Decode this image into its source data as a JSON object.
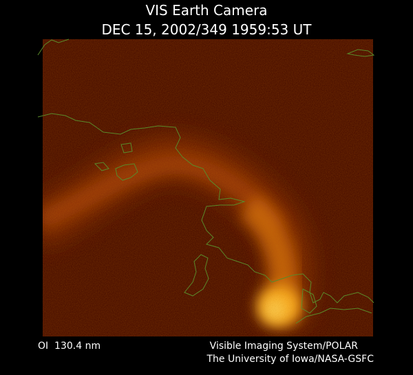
{
  "header": {
    "title": "VIS Earth Camera",
    "subtitle": "DEC 15, 2002/349 1959:53 UT"
  },
  "footer": {
    "left": "OI  130.4 nm",
    "right": [
      "Visible Imaging System/POLAR",
      "The University of Iowa/NASA-GSFC"
    ]
  }
}
